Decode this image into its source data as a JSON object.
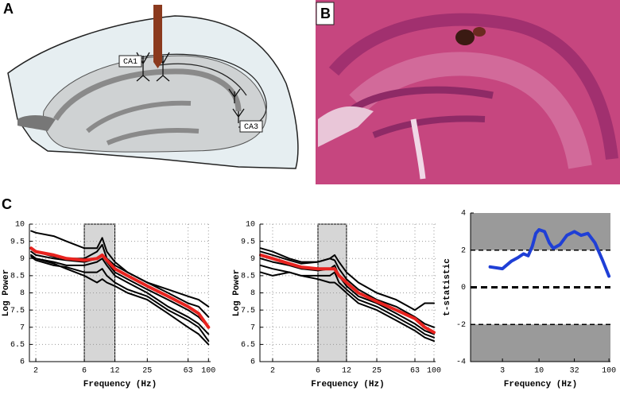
{
  "panels": [
    "A",
    "B",
    "C"
  ],
  "diagram_labels": [
    "CA1",
    "CA3"
  ],
  "chart_data": [
    {
      "type": "line",
      "xscale": "log",
      "xlabel": "Frequency (Hz)",
      "ylabel": "Log Power",
      "grid": true,
      "band": [
        6,
        12
      ],
      "x": [
        1.8,
        2,
        3,
        4,
        6,
        8,
        9,
        10,
        12,
        16,
        25,
        40,
        63,
        80,
        100
      ],
      "xlim": [
        1.73,
        105
      ],
      "xticks": [
        2,
        6,
        12,
        25,
        63,
        100
      ],
      "ylim": [
        6,
        10
      ],
      "yticks": [
        6,
        6.5,
        7,
        7.5,
        8,
        8.5,
        9,
        9.5,
        10
      ],
      "series": [
        {
          "color": "#000000",
          "values": [
            9.8,
            9.75,
            9.65,
            9.5,
            9.3,
            9.3,
            9.6,
            9.2,
            8.9,
            8.6,
            8.3,
            8.1,
            7.9,
            7.8,
            7.6
          ]
        },
        {
          "color": "#000000",
          "values": [
            9.3,
            9.2,
            9.05,
            9.0,
            9.0,
            9.2,
            9.4,
            9.0,
            8.8,
            8.6,
            8.3,
            8.0,
            7.7,
            7.6,
            7.3
          ]
        },
        {
          "color": "#000000",
          "values": [
            9.2,
            9.1,
            9.0,
            8.95,
            8.9,
            9.0,
            9.1,
            8.9,
            8.6,
            8.4,
            8.1,
            7.8,
            7.5,
            7.3,
            7.0
          ]
        },
        {
          "color": "#000000",
          "values": [
            9.1,
            9.0,
            8.9,
            8.8,
            8.8,
            8.9,
            9.0,
            8.8,
            8.5,
            8.3,
            8.0,
            7.6,
            7.3,
            7.1,
            6.8
          ]
        },
        {
          "color": "#000000",
          "values": [
            9.05,
            8.95,
            8.8,
            8.75,
            8.6,
            8.6,
            8.7,
            8.5,
            8.3,
            8.1,
            7.9,
            7.5,
            7.2,
            7.0,
            6.6
          ]
        },
        {
          "color": "#000000",
          "values": [
            9.1,
            9.0,
            8.85,
            8.7,
            8.5,
            8.3,
            8.4,
            8.3,
            8.2,
            8.0,
            7.8,
            7.4,
            7.0,
            6.8,
            6.5
          ]
        },
        {
          "color": "#e8231f",
          "linewidth": 4,
          "values": [
            9.3,
            9.2,
            9.1,
            9.0,
            8.95,
            9.0,
            9.1,
            8.95,
            8.7,
            8.5,
            8.2,
            7.9,
            7.6,
            7.4,
            7.0
          ]
        }
      ]
    },
    {
      "type": "line",
      "xscale": "log",
      "xlabel": "Frequency (Hz)",
      "ylabel": "Log Power",
      "grid": true,
      "band": [
        6,
        12
      ],
      "x": [
        1.5,
        2,
        3,
        4,
        6,
        8,
        9,
        10,
        12,
        16,
        25,
        40,
        63,
        80,
        100
      ],
      "xlim": [
        1.47,
        104
      ],
      "xticks": [
        2,
        6,
        12,
        25,
        63,
        100
      ],
      "ylim": [
        6,
        10
      ],
      "yticks": [
        6,
        6.5,
        7,
        7.5,
        8,
        8.5,
        9,
        9.5,
        10
      ],
      "series": [
        {
          "color": "#000000",
          "values": [
            9.3,
            9.2,
            9.0,
            8.9,
            8.9,
            9.0,
            9.1,
            8.9,
            8.6,
            8.3,
            8.0,
            7.8,
            7.5,
            7.7,
            7.7
          ]
        },
        {
          "color": "#000000",
          "values": [
            9.2,
            9.1,
            8.95,
            8.85,
            8.9,
            9.0,
            8.95,
            8.7,
            8.4,
            8.1,
            7.8,
            7.6,
            7.3,
            7.1,
            7.0
          ]
        },
        {
          "color": "#000000",
          "values": [
            9.0,
            8.9,
            8.8,
            8.7,
            8.65,
            8.7,
            8.8,
            8.5,
            8.2,
            7.9,
            7.7,
            7.4,
            7.1,
            6.9,
            6.8
          ]
        },
        {
          "color": "#000000",
          "values": [
            8.8,
            8.7,
            8.6,
            8.5,
            8.5,
            8.5,
            8.6,
            8.3,
            8.1,
            7.8,
            7.6,
            7.3,
            7.0,
            6.8,
            6.7
          ]
        },
        {
          "color": "#000000",
          "values": [
            8.6,
            8.5,
            8.6,
            8.5,
            8.4,
            8.3,
            8.3,
            8.2,
            8.0,
            7.7,
            7.5,
            7.2,
            6.9,
            6.7,
            6.6
          ]
        },
        {
          "color": "#e8231f",
          "linewidth": 4,
          "values": [
            9.1,
            9.0,
            8.85,
            8.75,
            8.7,
            8.7,
            8.7,
            8.5,
            8.3,
            8.0,
            7.75,
            7.5,
            7.25,
            7.0,
            6.85
          ]
        }
      ]
    },
    {
      "type": "line",
      "xscale": "log",
      "xlabel": "Frequency (Hz)",
      "ylabel": "t-statistic",
      "grid": false,
      "shade_outside": [
        -2,
        2
      ],
      "ref_lines": [
        -2,
        0,
        2
      ],
      "x": [
        2,
        3,
        4,
        5,
        6,
        7,
        8,
        9,
        10,
        12,
        14,
        16,
        20,
        25,
        32,
        40,
        50,
        63,
        80,
        100
      ],
      "xlim": [
        1.05,
        105
      ],
      "xticks": [
        3,
        10,
        32,
        100
      ],
      "ylim": [
        -4,
        4
      ],
      "yticks": [
        -4,
        -2,
        0,
        2,
        4
      ],
      "series": [
        {
          "color": "#1f3fd6",
          "linewidth": 4,
          "values": [
            1.1,
            1.0,
            1.4,
            1.6,
            1.8,
            1.7,
            2.2,
            2.9,
            3.1,
            3.0,
            2.4,
            2.1,
            2.3,
            2.8,
            3.0,
            2.8,
            2.9,
            2.4,
            1.5,
            0.6
          ]
        }
      ]
    }
  ]
}
